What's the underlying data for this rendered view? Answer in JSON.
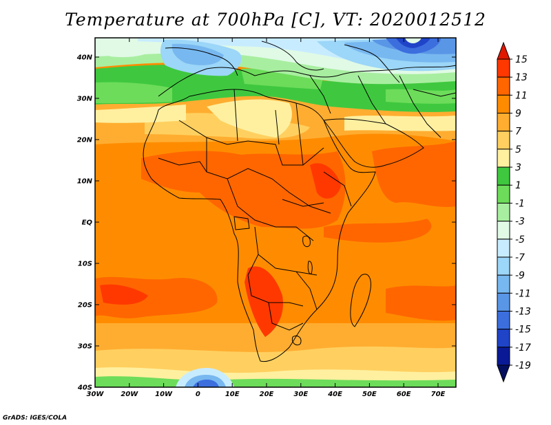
{
  "title": "Temperature at 700hPa [C], VT: 2020012512",
  "credit": "GrADS: IGES/COLA",
  "lat_labels": [
    "40N",
    "30N",
    "20N",
    "10N",
    "EQ",
    "10S",
    "20S",
    "30S",
    "40S"
  ],
  "lon_labels": [
    "30W",
    "20W",
    "10W",
    "0",
    "10E",
    "20E",
    "30E",
    "40E",
    "50E",
    "60E",
    "70E"
  ],
  "colorbar": {
    "labels": [
      "15",
      "13",
      "11",
      "9",
      "7",
      "5",
      "3",
      "1",
      "-1",
      "-3",
      "-5",
      "-7",
      "-9",
      "-11",
      "-13",
      "-15",
      "-17",
      "-19"
    ],
    "colors": [
      "#e01800",
      "#ff3800",
      "#ff6600",
      "#ff8c00",
      "#ffad30",
      "#ffd060",
      "#fff0a0",
      "#3fc83f",
      "#6ddc5a",
      "#a8eea0",
      "#e0fae6",
      "#c8ecff",
      "#9cd6f8",
      "#78b8f0",
      "#5a96e6",
      "#3c6ede",
      "#1f44c8",
      "#0a1a96",
      "#050f60"
    ]
  }
}
